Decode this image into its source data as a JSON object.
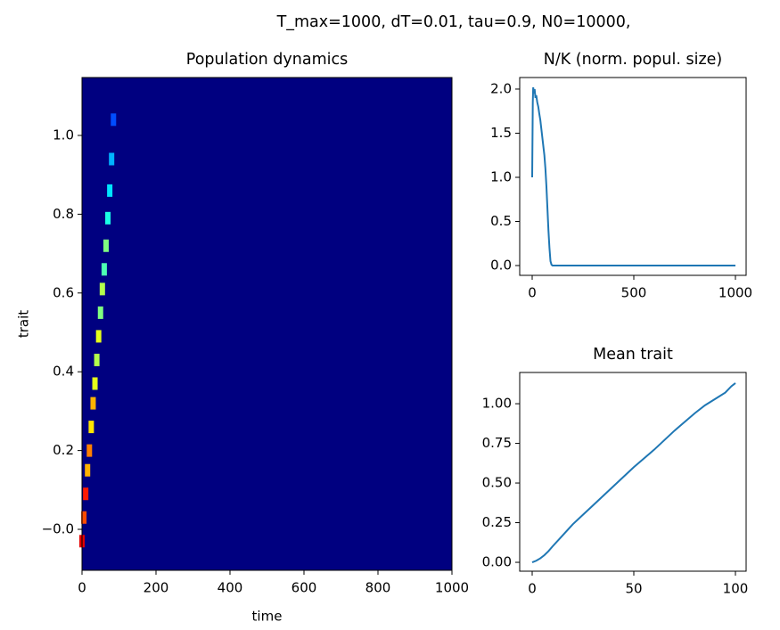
{
  "title": "T_max=1000, dT=0.01, tau=0.9, N0=10000,",
  "chart_data": [
    {
      "type": "heatmap",
      "title": "Population dynamics",
      "x_label": "time",
      "y_label": "trait",
      "colormap": "jet",
      "xlim": [
        0,
        1000
      ],
      "ylim": [
        -0.104,
        1.147
      ],
      "xticks": [
        0,
        200,
        400,
        600,
        800,
        1000
      ],
      "yticks": [
        {
          "value": 0,
          "label": "−0.0"
        },
        0.2,
        0.4,
        0.6,
        0.8,
        {
          "value": 1,
          "label": "1.0"
        }
      ],
      "x": [
        0,
        5,
        10,
        15,
        20,
        25,
        30,
        35,
        40,
        45,
        50,
        55,
        60,
        65,
        70,
        75,
        80,
        85
      ],
      "y": [
        -0.03,
        0.03,
        0.09,
        0.15,
        0.2,
        0.26,
        0.32,
        0.37,
        0.43,
        0.49,
        0.55,
        0.61,
        0.66,
        0.72,
        0.79,
        0.86,
        0.94,
        1.04
      ],
      "values": [
        0.9,
        0.8,
        0.85,
        0.7,
        0.75,
        0.65,
        0.7,
        0.6,
        0.55,
        0.6,
        0.5,
        0.55,
        0.45,
        0.5,
        0.4,
        0.35,
        0.3,
        0.2
      ]
    },
    {
      "type": "line",
      "title": "N/K (norm. popul. size)",
      "color": "#1f77b4",
      "xlim": [
        -61.4,
        1052.6
      ],
      "ylim": [
        -0.111,
        2.131
      ],
      "xticks": [
        0,
        500,
        1000
      ],
      "yticks": [
        {
          "value": 0,
          "label": "0.0"
        },
        0.5,
        {
          "value": 1,
          "label": "1.0"
        },
        1.5,
        {
          "value": 2,
          "label": "2.0"
        }
      ],
      "x": [
        0,
        3,
        5,
        8,
        12,
        16,
        20,
        25,
        30,
        35,
        40,
        45,
        50,
        55,
        60,
        65,
        70,
        75,
        80,
        85,
        90,
        95,
        100,
        200,
        400,
        600,
        800,
        1000
      ],
      "values": [
        1.0,
        1.85,
        2.02,
        1.95,
        2.0,
        1.9,
        1.93,
        1.85,
        1.8,
        1.72,
        1.65,
        1.55,
        1.45,
        1.35,
        1.25,
        1.1,
        0.9,
        0.65,
        0.4,
        0.2,
        0.05,
        0.01,
        0,
        0,
        0,
        0,
        0,
        0
      ]
    },
    {
      "type": "line",
      "title": "Mean trait",
      "color": "#1f77b4",
      "xlim": [
        -6.14,
        105.26
      ],
      "ylim": [
        -0.056,
        1.197
      ],
      "xticks": [
        0,
        50,
        100
      ],
      "yticks": [
        {
          "value": 0,
          "label": "0.00"
        },
        0.25,
        {
          "value": 0.5,
          "label": "0.50"
        },
        0.75,
        {
          "value": 1,
          "label": "1.00"
        }
      ],
      "x": [
        0,
        2,
        4,
        6,
        8,
        10,
        15,
        20,
        25,
        30,
        40,
        50,
        60,
        70,
        80,
        85,
        90,
        95,
        98,
        100
      ],
      "values": [
        0,
        0.01,
        0.025,
        0.045,
        0.07,
        0.1,
        0.17,
        0.24,
        0.3,
        0.36,
        0.48,
        0.6,
        0.71,
        0.83,
        0.94,
        0.99,
        1.03,
        1.07,
        1.11,
        1.13
      ]
    }
  ]
}
